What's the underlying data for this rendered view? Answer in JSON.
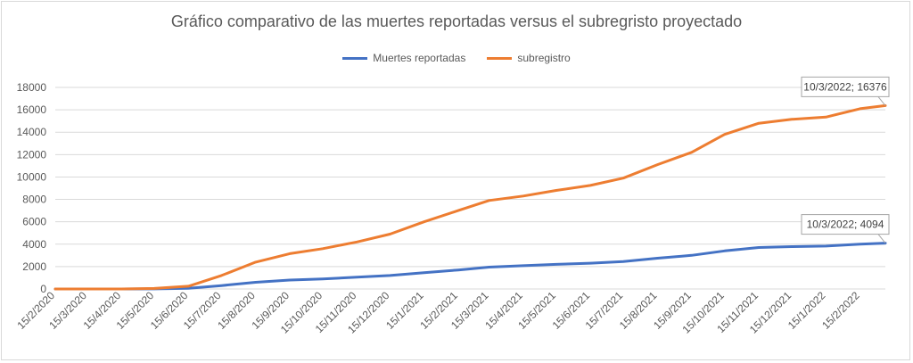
{
  "chart_data": {
    "type": "line",
    "title": "Gráfico comparativo de las muertes reportadas versus el subregristo proyectado",
    "xlabel": "",
    "ylabel": "",
    "ylim": [
      0,
      18000
    ],
    "y_ticks": [
      0,
      2000,
      4000,
      6000,
      8000,
      10000,
      12000,
      14000,
      16000,
      18000
    ],
    "x_tick_labels": [
      "15/2/2020",
      "15/3/2020",
      "15/4/2020",
      "15/5/2020",
      "15/6/2020",
      "15/7/2020",
      "15/8/2020",
      "15/9/2020",
      "15/10/2020",
      "15/11/2020",
      "15/12/2020",
      "15/1/2021",
      "15/2/2021",
      "15/3/2021",
      "15/4/2021",
      "15/5/2021",
      "15/6/2021",
      "15/7/2021",
      "15/8/2021",
      "15/9/2021",
      "15/10/2021",
      "15/11/2021",
      "15/12/2021",
      "15/1/2022",
      "15/2/2022"
    ],
    "x_range": [
      "15/2/2020",
      "10/3/2022"
    ],
    "grid": true,
    "legend_position": "top",
    "series": [
      {
        "name": "Muertes reportadas",
        "color": "#4472c4",
        "x": [
          "15/2/2020",
          "15/3/2020",
          "15/4/2020",
          "15/5/2020",
          "15/6/2020",
          "15/7/2020",
          "15/8/2020",
          "15/9/2020",
          "15/10/2020",
          "15/11/2020",
          "15/12/2020",
          "15/1/2021",
          "15/2/2021",
          "15/3/2021",
          "15/4/2021",
          "15/5/2021",
          "15/6/2021",
          "15/7/2021",
          "15/8/2021",
          "15/9/2021",
          "15/10/2021",
          "15/11/2021",
          "15/12/2021",
          "15/1/2022",
          "15/2/2022",
          "10/3/2022"
        ],
        "values": [
          0,
          0,
          0,
          10,
          60,
          300,
          600,
          800,
          900,
          1050,
          1200,
          1450,
          1700,
          1950,
          2080,
          2200,
          2300,
          2450,
          2750,
          3000,
          3400,
          3700,
          3780,
          3830,
          4000,
          4094
        ]
      },
      {
        "name": "subregistro",
        "color": "#ed7d31",
        "x": [
          "15/2/2020",
          "15/3/2020",
          "15/4/2020",
          "15/5/2020",
          "15/6/2020",
          "15/7/2020",
          "15/8/2020",
          "15/9/2020",
          "15/10/2020",
          "15/11/2020",
          "15/12/2020",
          "15/1/2021",
          "15/2/2021",
          "15/3/2021",
          "15/4/2021",
          "15/5/2021",
          "15/6/2021",
          "15/7/2021",
          "15/8/2021",
          "15/9/2021",
          "15/10/2021",
          "15/11/2021",
          "15/12/2021",
          "15/1/2022",
          "15/2/2022",
          "10/3/2022"
        ],
        "values": [
          0,
          0,
          0,
          50,
          250,
          1200,
          2400,
          3150,
          3600,
          4200,
          4900,
          6000,
          7000,
          7900,
          8300,
          8800,
          9250,
          9900,
          11100,
          12200,
          13800,
          14800,
          15150,
          15350,
          16100,
          16376
        ]
      }
    ],
    "annotations": [
      {
        "series": "subregistro",
        "label": "10/3/2022; 16376"
      },
      {
        "series": "Muertes reportadas",
        "label": "10/3/2022; 4094"
      }
    ]
  }
}
